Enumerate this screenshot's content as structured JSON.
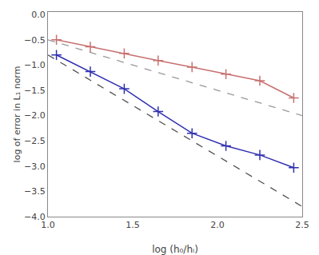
{
  "chart_data": {
    "type": "line",
    "xlabel": "log (h₀/hᵢ)",
    "ylabel": "log of error in L₁ norm",
    "xlim": [
      1.0,
      2.5
    ],
    "ylim": [
      -4.0,
      0.05
    ],
    "xticks": [
      {
        "value": 1.0,
        "label": "1.0"
      },
      1.5,
      {
        "value": 2.0,
        "label": "2.0"
      },
      2.5
    ],
    "yticks": [
      {
        "value": 0,
        "label": "0.0"
      },
      {
        "value": -0.5,
        "label": "−0.5"
      },
      {
        "value": -1.0,
        "label": "−1.0"
      },
      {
        "value": -1.5,
        "label": "−1.5"
      },
      {
        "value": -2.0,
        "label": "−2.0"
      },
      {
        "value": -2.5,
        "label": "−2.5"
      },
      {
        "value": -3.0,
        "label": "−3.0"
      },
      {
        "value": -3.5,
        "label": "−3.5"
      },
      {
        "value": -4.0,
        "label": "−4.0"
      }
    ],
    "grid": false,
    "series": [
      {
        "color": "#999999",
        "line_style": "dashed",
        "x": [
          1.0,
          2.5
        ],
        "values": [
          -0.5,
          -2.0
        ]
      },
      {
        "color": "#505050",
        "line_style": "dashed",
        "x": [
          1.0,
          2.5
        ],
        "values": [
          -0.8,
          -3.8
        ]
      },
      {
        "color": "#c87070",
        "line_style": "solid",
        "marker": "plus",
        "x": [
          1.05,
          1.25,
          1.45,
          1.65,
          1.85,
          2.05,
          2.25,
          2.45
        ],
        "values": [
          -0.5,
          -0.64,
          -0.77,
          -0.91,
          -1.04,
          -1.18,
          -1.31,
          -1.65
        ]
      },
      {
        "color": "#3030b0",
        "line_style": "solid",
        "marker": "plus",
        "x": [
          1.05,
          1.25,
          1.45,
          1.65,
          1.85,
          2.05,
          2.25,
          2.45
        ],
        "values": [
          -0.8,
          -1.13,
          -1.47,
          -1.92,
          -2.35,
          -2.6,
          -2.78,
          -3.03
        ]
      }
    ]
  }
}
